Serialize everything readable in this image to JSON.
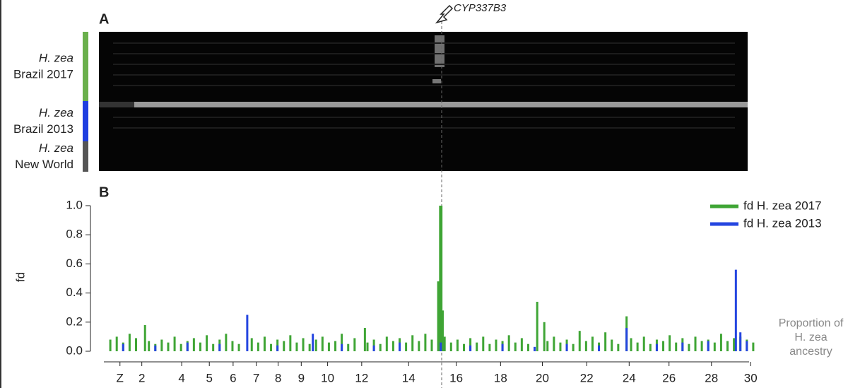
{
  "chart_data": {
    "type": "spike",
    "panel_a_label": "A",
    "panel_b_label": "B",
    "gene_label": "CYP337B3",
    "groups": [
      {
        "species": "H. zea",
        "name": "Brazil 2017",
        "color": "#6ab04c"
      },
      {
        "species": "H. zea",
        "name": "Brazil 2013",
        "color": "#1f3fe0"
      },
      {
        "species": "H. zea",
        "name": "New World",
        "color": "#555555"
      }
    ],
    "y_label": "fd",
    "side_note": "Proportion of H. zea ancestry",
    "xlim": [
      0,
      102
    ],
    "ylim": [
      0,
      1
    ],
    "yticks": [
      {
        "value": 0,
        "label": "0.0"
      },
      {
        "value": 0.2,
        "label": "0.2"
      },
      {
        "value": 0.4,
        "label": "0.4"
      },
      {
        "value": 0.6,
        "label": "0.6"
      },
      {
        "value": 0.8,
        "label": "0.8"
      },
      {
        "value": 1,
        "label": "1.0"
      }
    ],
    "xticks": [
      {
        "value": 2.5,
        "label": "Z"
      },
      5.9,
      12.1,
      16.4,
      20.1,
      23.7,
      27.1,
      30.7,
      34.8,
      40.1,
      47.4,
      54.8,
      61.7,
      68.2,
      75.1,
      81.7,
      87.9,
      94.5,
      100.6
    ],
    "xtick_labels": [
      "Z",
      "2",
      "4",
      "5",
      "6",
      "7",
      "8",
      "9",
      "10",
      "12",
      "14",
      "16",
      "18",
      "20",
      "22",
      "24",
      "26",
      "28",
      "30"
    ],
    "legend": "top-right",
    "series": [
      {
        "name": "fd H. zea 2017",
        "color": "#3fa535",
        "x": [
          1,
          2,
          3,
          4,
          5,
          6.4,
          7,
          8,
          9,
          10,
          11,
          12,
          13,
          14,
          15,
          16,
          17,
          18,
          19,
          20,
          21,
          23,
          24,
          25,
          26,
          27,
          28,
          29,
          30,
          31,
          32,
          33,
          34,
          35,
          36,
          37,
          38,
          39,
          40.6,
          41,
          42,
          43,
          44,
          45,
          46,
          47,
          48,
          49,
          50,
          51,
          52.0,
          52.3,
          52.5,
          52.7,
          53,
          54,
          55,
          56,
          57,
          58,
          59,
          60,
          61,
          62,
          63,
          64,
          65,
          66,
          67.4,
          68.5,
          69,
          70,
          71,
          72,
          73,
          74,
          75,
          76,
          77,
          78,
          79,
          80,
          81.3,
          82,
          83,
          84,
          85,
          86,
          87,
          88,
          89,
          90,
          91,
          92,
          93,
          94,
          95,
          96,
          97,
          98,
          99,
          100,
          101
        ],
        "values": [
          0.08,
          0.1,
          0.06,
          0.12,
          0.09,
          0.18,
          0.07,
          0.05,
          0.08,
          0.06,
          0.1,
          0.05,
          0.07,
          0.09,
          0.06,
          0.11,
          0.05,
          0.08,
          0.12,
          0.07,
          0.05,
          0.09,
          0.06,
          0.1,
          0.05,
          0.08,
          0.07,
          0.11,
          0.06,
          0.09,
          0.05,
          0.08,
          0.1,
          0.06,
          0.07,
          0.12,
          0.05,
          0.09,
          0.16,
          0.06,
          0.08,
          0.05,
          0.1,
          0.07,
          0.09,
          0.06,
          0.11,
          0.07,
          0.12,
          0.08,
          0.48,
          1.0,
          1.0,
          0.28,
          0.1,
          0.06,
          0.08,
          0.05,
          0.09,
          0.06,
          0.1,
          0.05,
          0.08,
          0.07,
          0.11,
          0.06,
          0.09,
          0.05,
          0.34,
          0.2,
          0.07,
          0.1,
          0.06,
          0.08,
          0.05,
          0.14,
          0.07,
          0.1,
          0.06,
          0.13,
          0.08,
          0.05,
          0.24,
          0.09,
          0.06,
          0.1,
          0.05,
          0.08,
          0.07,
          0.11,
          0.06,
          0.09,
          0.05,
          0.1,
          0.07,
          0.08,
          0.06,
          0.12,
          0.07,
          0.09,
          0.1,
          0.08,
          0.06
        ]
      },
      {
        "name": "fd H. zea 2013",
        "color": "#2445e0",
        "x": [
          3,
          8,
          13,
          18,
          22.3,
          27,
          32.5,
          37,
          42,
          46,
          52.4,
          57,
          62,
          67,
          72,
          77,
          81.3,
          86,
          90,
          94,
          98.3,
          99,
          100
        ],
        "values": [
          0.05,
          0.04,
          0.06,
          0.05,
          0.25,
          0.04,
          0.12,
          0.05,
          0.04,
          0.06,
          0.06,
          0.04,
          0.05,
          0.03,
          0.05,
          0.04,
          0.16,
          0.05,
          0.06,
          0.07,
          0.56,
          0.13,
          0.07
        ]
      }
    ]
  }
}
